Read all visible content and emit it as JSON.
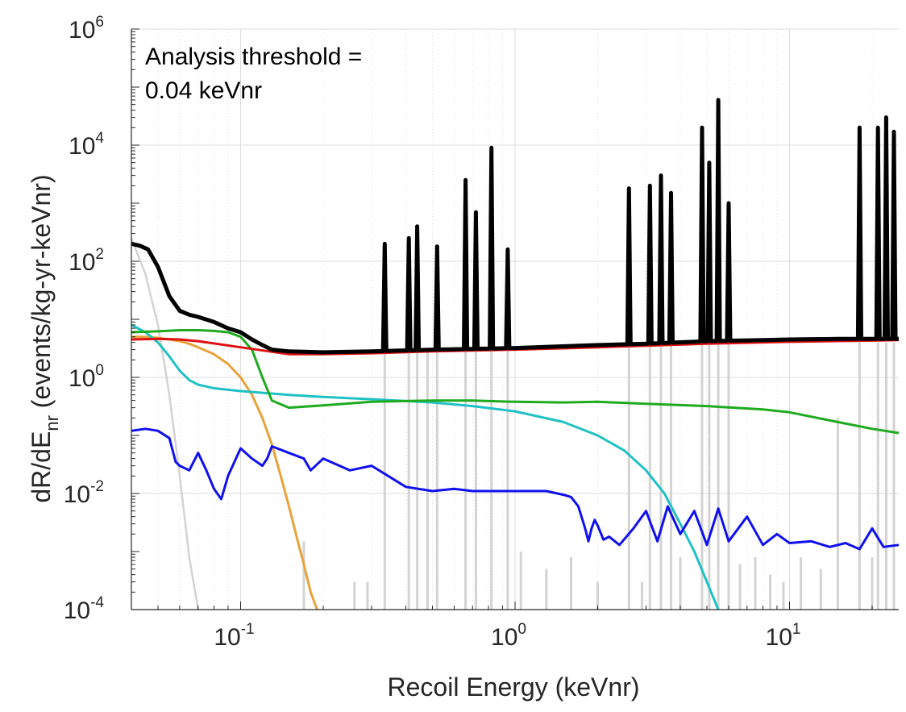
{
  "chart_data": {
    "type": "line",
    "xscale": "log",
    "yscale": "log",
    "xlim": [
      0.04,
      25
    ],
    "ylim": [
      0.0001,
      1000000
    ],
    "grid": true,
    "xlabel": "Recoil Energy (keVnr)",
    "ylabel_main": "dR/dE",
    "ylabel_sub": "nr",
    "ylabel_rest": " (events/kg-yr-keVnr)",
    "x_ticks": [
      {
        "value": 0.1,
        "base": "10",
        "exp": "-1"
      },
      {
        "value": 1,
        "base": "10",
        "exp": "0"
      },
      {
        "value": 10,
        "base": "10",
        "exp": "1"
      }
    ],
    "y_ticks": [
      {
        "value": 0.0001,
        "base": "10",
        "exp": "-4"
      },
      {
        "value": 0.01,
        "base": "10",
        "exp": "-2"
      },
      {
        "value": 1,
        "base": "10",
        "exp": "0"
      },
      {
        "value": 100,
        "base": "10",
        "exp": "2"
      },
      {
        "value": 10000,
        "base": "10",
        "exp": "4"
      },
      {
        "value": 1000000,
        "base": "10",
        "exp": "6"
      }
    ],
    "annotation": [
      "Analysis threshold =",
      "0.04 keVnr"
    ],
    "series": [
      {
        "color": "#d3d3d3",
        "width": 2.5,
        "x": [
          0.04,
          0.045,
          0.05,
          0.055,
          0.06,
          0.065,
          0.07
        ],
        "y": [
          250,
          60,
          8,
          0.5,
          0.02,
          0.0008,
          0.0001
        ]
      },
      {
        "color": "#d3d3d3",
        "width": 3,
        "spikes": [
          [
            0.148,
            0.0001
          ],
          [
            0.155,
            0.0001
          ],
          [
            0.17,
            0.0015
          ],
          [
            0.18,
            0.0001
          ],
          [
            0.26,
            0.0003
          ],
          [
            0.29,
            0.0003
          ],
          [
            0.335,
            3
          ],
          [
            0.36,
            0.0001
          ],
          [
            0.41,
            3
          ],
          [
            0.44,
            3
          ],
          [
            0.48,
            3
          ],
          [
            0.52,
            3
          ],
          [
            0.58,
            0.0001
          ],
          [
            0.66,
            3
          ],
          [
            0.72,
            3
          ],
          [
            0.82,
            3
          ],
          [
            0.94,
            3
          ],
          [
            1.05,
            0.001
          ],
          [
            1.3,
            0.0005
          ],
          [
            1.6,
            0.0008
          ],
          [
            2.0,
            0.0003
          ],
          [
            2.6,
            4
          ],
          [
            2.9,
            0.0003
          ],
          [
            3.1,
            4
          ],
          [
            3.4,
            4
          ],
          [
            3.7,
            4
          ],
          [
            4.0,
            0.0008
          ],
          [
            4.8,
            4
          ],
          [
            5.1,
            4
          ],
          [
            5.5,
            4
          ],
          [
            6.0,
            4
          ],
          [
            6.6,
            0.0006
          ],
          [
            7.5,
            0.0008
          ],
          [
            8.5,
            0.0004
          ],
          [
            9.5,
            0.0003
          ],
          [
            11,
            0.0008
          ],
          [
            13,
            0.0005
          ],
          [
            15,
            0.2
          ],
          [
            18,
            4
          ],
          [
            20,
            0.0008
          ],
          [
            21,
            4
          ],
          [
            22.5,
            4
          ],
          [
            24,
            4
          ]
        ]
      },
      {
        "color": "#e8a23a",
        "width": 3,
        "x": [
          0.04,
          0.045,
          0.05,
          0.055,
          0.06,
          0.065,
          0.07,
          0.08,
          0.09,
          0.1,
          0.11,
          0.12,
          0.13,
          0.14,
          0.15,
          0.16,
          0.17,
          0.18,
          0.19
        ],
        "y": [
          5,
          5,
          4.8,
          4.5,
          4.2,
          3.8,
          3.3,
          2.5,
          1.7,
          1.0,
          0.5,
          0.2,
          0.07,
          0.02,
          0.006,
          0.0018,
          0.0006,
          0.0002,
          0.0001
        ]
      },
      {
        "color": "#1fc1c4",
        "width": 3,
        "x": [
          0.04,
          0.045,
          0.05,
          0.055,
          0.06,
          0.065,
          0.07,
          0.08,
          0.1,
          0.15,
          0.2,
          0.3,
          0.5,
          0.7,
          1,
          1.5,
          2,
          2.5,
          3,
          3.5,
          4,
          4.5,
          5,
          5.5
        ],
        "y": [
          8,
          6,
          4,
          2.3,
          1.3,
          0.9,
          0.75,
          0.65,
          0.58,
          0.5,
          0.46,
          0.42,
          0.37,
          0.32,
          0.26,
          0.17,
          0.1,
          0.055,
          0.025,
          0.01,
          0.003,
          0.001,
          0.0003,
          0.0001
        ]
      },
      {
        "color": "#1faa1f",
        "width": 3,
        "x": [
          0.04,
          0.05,
          0.06,
          0.07,
          0.08,
          0.09,
          0.1,
          0.11,
          0.12,
          0.13,
          0.15,
          0.2,
          0.3,
          0.5,
          0.7,
          1,
          1.5,
          2,
          3,
          5,
          8,
          10,
          15,
          20,
          25
        ],
        "y": [
          6,
          6.2,
          6.5,
          6.5,
          6.3,
          6,
          5,
          3,
          1,
          0.4,
          0.3,
          0.33,
          0.38,
          0.4,
          0.4,
          0.38,
          0.37,
          0.38,
          0.35,
          0.32,
          0.28,
          0.25,
          0.17,
          0.13,
          0.11
        ]
      },
      {
        "color": "#dd1111",
        "width": 3,
        "x": [
          0.04,
          0.05,
          0.06,
          0.07,
          0.1,
          0.15,
          0.2,
          0.3,
          0.5,
          1,
          2,
          3,
          5,
          10,
          20,
          25
        ],
        "y": [
          4.5,
          4.6,
          4.5,
          4.2,
          3.3,
          2.5,
          2.5,
          2.6,
          2.8,
          3.0,
          3.3,
          3.5,
          3.8,
          4.1,
          4.3,
          4.4
        ]
      },
      {
        "color": "#1010ee",
        "width": 3,
        "x": [
          0.04,
          0.045,
          0.05,
          0.055,
          0.058,
          0.06,
          0.065,
          0.07,
          0.075,
          0.08,
          0.085,
          0.09,
          0.1,
          0.11,
          0.12,
          0.125,
          0.13,
          0.15,
          0.17,
          0.18,
          0.2,
          0.25,
          0.3,
          0.4,
          0.5,
          0.6,
          0.7,
          0.8,
          0.9,
          1,
          1.2,
          1.3,
          1.5,
          1.6,
          1.7,
          1.8,
          1.85,
          1.9,
          1.95,
          2.0,
          2.1,
          2.2,
          2.4,
          2.7,
          3.0,
          3.3,
          3.6,
          4,
          4.5,
          5,
          5.5,
          6,
          7,
          8,
          9,
          10,
          12,
          14,
          16,
          18,
          20,
          22,
          25
        ],
        "y": [
          0.12,
          0.13,
          0.12,
          0.09,
          0.035,
          0.03,
          0.025,
          0.05,
          0.025,
          0.012,
          0.008,
          0.02,
          0.06,
          0.04,
          0.03,
          0.04,
          0.065,
          0.05,
          0.04,
          0.025,
          0.04,
          0.025,
          0.03,
          0.013,
          0.011,
          0.012,
          0.011,
          0.011,
          0.011,
          0.011,
          0.011,
          0.011,
          0.0095,
          0.0087,
          0.006,
          0.0025,
          0.0015,
          0.0025,
          0.0035,
          0.0028,
          0.0016,
          0.0018,
          0.0013,
          0.0025,
          0.005,
          0.0015,
          0.006,
          0.002,
          0.005,
          0.0013,
          0.0055,
          0.0015,
          0.004,
          0.0013,
          0.002,
          0.0014,
          0.0015,
          0.0012,
          0.0014,
          0.0011,
          0.0025,
          0.0012,
          0.0013
        ]
      },
      {
        "color": "#000000",
        "width": 5,
        "x": [
          0.04,
          0.043,
          0.046,
          0.05,
          0.055,
          0.06,
          0.065,
          0.07,
          0.08,
          0.09,
          0.1,
          0.11,
          0.12,
          0.13,
          0.15,
          0.2,
          0.3,
          0.5,
          1,
          2,
          3,
          5,
          8,
          10,
          15,
          20,
          25
        ],
        "y": [
          200,
          185,
          160,
          80,
          25,
          14,
          12,
          11,
          9,
          7,
          6,
          4.5,
          3.6,
          3,
          2.8,
          2.7,
          2.8,
          3.0,
          3.2,
          3.6,
          3.8,
          4.2,
          4.4,
          4.5,
          4.6,
          4.6,
          4.6
        ],
        "spikes": [
          [
            0.335,
            200
          ],
          [
            0.41,
            250
          ],
          [
            0.44,
            400
          ],
          [
            0.52,
            180
          ],
          [
            0.66,
            2500
          ],
          [
            0.72,
            700
          ],
          [
            0.82,
            9000
          ],
          [
            0.94,
            160
          ],
          [
            2.6,
            1800
          ],
          [
            3.1,
            2000
          ],
          [
            3.4,
            3000
          ],
          [
            3.7,
            1500
          ],
          [
            4.8,
            20000
          ],
          [
            5.1,
            5000
          ],
          [
            5.5,
            60000
          ],
          [
            6.0,
            1000
          ],
          [
            18,
            20000
          ],
          [
            21,
            20000
          ],
          [
            22.5,
            30000
          ],
          [
            24,
            17000
          ]
        ]
      }
    ]
  }
}
